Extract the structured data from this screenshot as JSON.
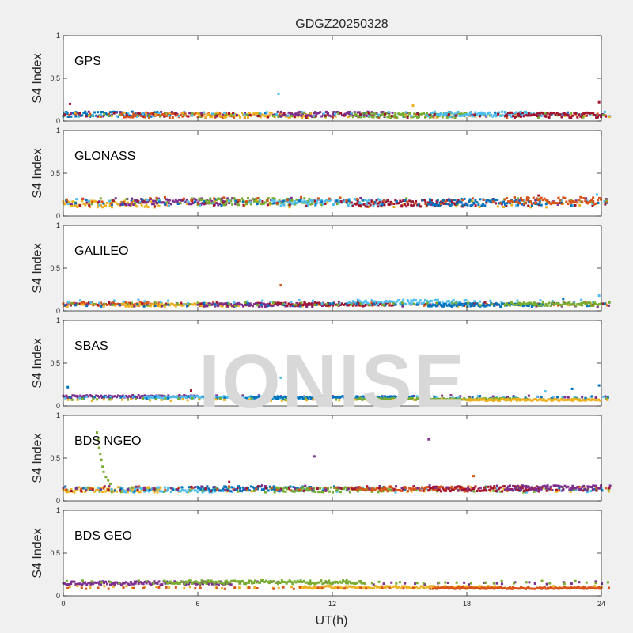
{
  "chart_data": {
    "type": "scatter",
    "title": "GDGZ20250328",
    "xlabel": "UT(h)",
    "ylabel": "S4 Index",
    "xlim": [
      0,
      24
    ],
    "ylim": [
      0,
      1
    ],
    "xticks": [
      "0",
      "6",
      "12",
      "18",
      "24"
    ],
    "yticks": [
      "0",
      "0.5",
      "1"
    ],
    "grid": false,
    "watermark": "IONISE",
    "colors": {
      "blue": "#0072BD",
      "orange": "#D95319",
      "yellow": "#EDB120",
      "purple": "#7E2F8E",
      "green": "#77AC30",
      "cyan": "#4DBEEE",
      "red": "#A2142F"
    },
    "panels": [
      {
        "label": "GPS",
        "series": [
          {
            "color": "blue",
            "base": 0.08,
            "noise": 0.03
          },
          {
            "color": "orange",
            "base": 0.07,
            "noise": 0.03
          },
          {
            "color": "yellow",
            "base": 0.07,
            "noise": 0.03
          },
          {
            "color": "purple",
            "base": 0.08,
            "noise": 0.03
          },
          {
            "color": "green",
            "base": 0.07,
            "noise": 0.03
          },
          {
            "color": "cyan",
            "base": 0.08,
            "noise": 0.03
          },
          {
            "color": "red",
            "base": 0.07,
            "noise": 0.03
          }
        ],
        "outliers": [
          [
            9.6,
            0.32,
            "cyan"
          ],
          [
            0.3,
            0.2,
            "red"
          ],
          [
            15.6,
            0.18,
            "yellow"
          ],
          [
            23.9,
            0.22,
            "red"
          ]
        ]
      },
      {
        "label": "GLONASS",
        "series": [
          {
            "color": "yellow",
            "base": 0.14,
            "noise": 0.04
          },
          {
            "color": "purple",
            "base": 0.17,
            "noise": 0.04
          },
          {
            "color": "green",
            "base": 0.17,
            "noise": 0.04
          },
          {
            "color": "cyan",
            "base": 0.16,
            "noise": 0.04
          },
          {
            "color": "red",
            "base": 0.15,
            "noise": 0.04
          },
          {
            "color": "blue",
            "base": 0.16,
            "noise": 0.04
          },
          {
            "color": "orange",
            "base": 0.18,
            "noise": 0.04
          }
        ],
        "outliers": [
          [
            23.8,
            0.25,
            "cyan"
          ],
          [
            21.2,
            0.24,
            "red"
          ]
        ]
      },
      {
        "label": "GALILEO",
        "series": [
          {
            "color": "orange",
            "base": 0.08,
            "noise": 0.02
          },
          {
            "color": "yellow",
            "base": 0.07,
            "noise": 0.02
          },
          {
            "color": "purple",
            "base": 0.07,
            "noise": 0.02
          },
          {
            "color": "red",
            "base": 0.08,
            "noise": 0.02
          },
          {
            "color": "cyan",
            "base": 0.1,
            "noise": 0.03
          },
          {
            "color": "blue",
            "base": 0.07,
            "noise": 0.02
          },
          {
            "color": "green",
            "base": 0.08,
            "noise": 0.02
          }
        ],
        "outliers": [
          [
            9.7,
            0.3,
            "orange"
          ],
          [
            22.3,
            0.14,
            "blue"
          ],
          [
            23.9,
            0.18,
            "cyan"
          ]
        ]
      },
      {
        "label": "SBAS",
        "series": [
          {
            "color": "purple",
            "base": 0.11,
            "noise": 0.015
          },
          {
            "color": "cyan",
            "base": 0.1,
            "noise": 0.015
          },
          {
            "color": "blue",
            "base": 0.1,
            "noise": 0.015
          },
          {
            "color": "green",
            "base": 0.08,
            "noise": 0.01
          },
          {
            "color": "yellow",
            "base": 0.07,
            "noise": 0.01
          }
        ],
        "outliers": [
          [
            9.7,
            0.33,
            "cyan"
          ],
          [
            0.2,
            0.22,
            "blue"
          ],
          [
            5.7,
            0.18,
            "red"
          ],
          [
            23.9,
            0.24,
            "blue"
          ],
          [
            22.7,
            0.2,
            "blue"
          ],
          [
            21.5,
            0.17,
            "cyan"
          ]
        ]
      },
      {
        "label": "BDS NGEO",
        "series": [
          {
            "color": "yellow",
            "base": 0.13,
            "noise": 0.03
          },
          {
            "color": "cyan",
            "base": 0.13,
            "noise": 0.03
          },
          {
            "color": "blue",
            "base": 0.14,
            "noise": 0.03
          },
          {
            "color": "green",
            "base": 0.13,
            "noise": 0.03
          },
          {
            "color": "orange",
            "base": 0.14,
            "noise": 0.03
          },
          {
            "color": "red",
            "base": 0.14,
            "noise": 0.03
          },
          {
            "color": "purple",
            "base": 0.15,
            "noise": 0.03
          }
        ],
        "outliers": [
          [
            1.5,
            0.8,
            "green"
          ],
          [
            1.55,
            0.72,
            "green"
          ],
          [
            1.6,
            0.62,
            "green"
          ],
          [
            1.65,
            0.55,
            "green"
          ],
          [
            1.7,
            0.48,
            "green"
          ],
          [
            1.75,
            0.4,
            "green"
          ],
          [
            1.8,
            0.34,
            "green"
          ],
          [
            1.9,
            0.28,
            "green"
          ],
          [
            2.0,
            0.24,
            "green"
          ],
          [
            2.1,
            0.2,
            "green"
          ],
          [
            16.3,
            0.72,
            "purple"
          ],
          [
            11.2,
            0.52,
            "purple"
          ],
          [
            18.3,
            0.29,
            "orange"
          ],
          [
            7.4,
            0.22,
            "red"
          ]
        ]
      },
      {
        "label": "BDS GEO",
        "series": [
          {
            "color": "purple",
            "base": 0.15,
            "noise": 0.02
          },
          {
            "color": "green",
            "base": 0.16,
            "noise": 0.02
          },
          {
            "color": "yellow",
            "base": 0.1,
            "noise": 0.015
          },
          {
            "color": "orange",
            "base": 0.09,
            "noise": 0.01
          }
        ],
        "outliers": []
      }
    ]
  }
}
